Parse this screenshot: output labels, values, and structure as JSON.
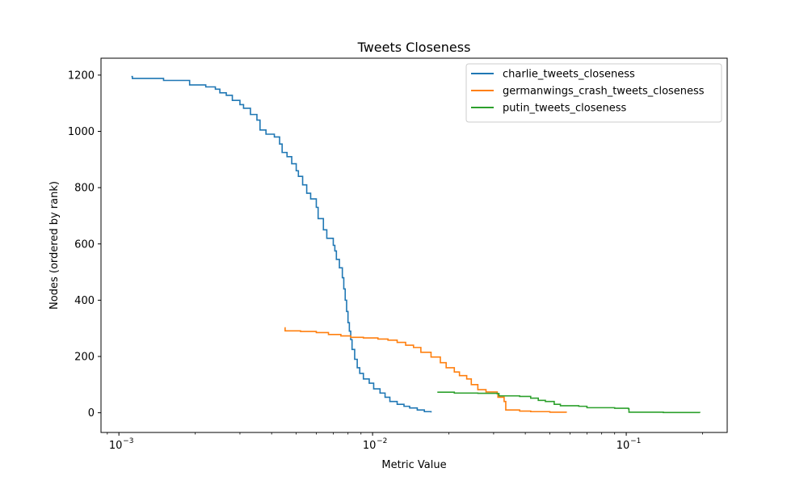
{
  "chart_data": {
    "type": "line",
    "title": "Tweets Closeness",
    "xlabel": "Metric Value",
    "ylabel": "Nodes (ordered by rank)",
    "xscale": "log",
    "xlim": [
      0.00085,
      0.25
    ],
    "ylim": [
      -70,
      1260
    ],
    "grid": false,
    "legend_position": "top-right",
    "x_tick_labels": [
      "10",
      "10",
      "10"
    ],
    "x_tick_exponents": [
      "−3",
      "−2",
      "−1"
    ],
    "x_ticks": [
      0.001,
      0.01,
      0.1
    ],
    "y_ticks": [
      0,
      200,
      400,
      600,
      800,
      1000,
      1200
    ],
    "y_tick_labels": [
      "0",
      "200",
      "400",
      "600",
      "800",
      "1000",
      "1200"
    ],
    "series": [
      {
        "name": "charlie_tweets_closeness",
        "color": "#1f77b4",
        "points": [
          [
            0.00112,
            1195
          ],
          [
            0.00113,
            1188
          ],
          [
            0.0015,
            1187
          ],
          [
            0.0015,
            1181
          ],
          [
            0.0019,
            1176
          ],
          [
            0.0019,
            1165
          ],
          [
            0.0022,
            1158
          ],
          [
            0.0024,
            1150
          ],
          [
            0.0025,
            1137
          ],
          [
            0.00265,
            1128
          ],
          [
            0.0028,
            1110
          ],
          [
            0.003,
            1095
          ],
          [
            0.0031,
            1082
          ],
          [
            0.0033,
            1060
          ],
          [
            0.0035,
            1040
          ],
          [
            0.0036,
            1005
          ],
          [
            0.0038,
            990
          ],
          [
            0.0041,
            980
          ],
          [
            0.0043,
            955
          ],
          [
            0.0044,
            925
          ],
          [
            0.0046,
            910
          ],
          [
            0.0048,
            885
          ],
          [
            0.005,
            860
          ],
          [
            0.0051,
            840
          ],
          [
            0.0053,
            810
          ],
          [
            0.0055,
            780
          ],
          [
            0.0057,
            760
          ],
          [
            0.006,
            730
          ],
          [
            0.0061,
            690
          ],
          [
            0.0064,
            650
          ],
          [
            0.0066,
            620
          ],
          [
            0.007,
            595
          ],
          [
            0.0071,
            575
          ],
          [
            0.0072,
            545
          ],
          [
            0.0074,
            515
          ],
          [
            0.0076,
            480
          ],
          [
            0.0077,
            440
          ],
          [
            0.0078,
            400
          ],
          [
            0.0079,
            360
          ],
          [
            0.008,
            320
          ],
          [
            0.0081,
            290
          ],
          [
            0.0082,
            260
          ],
          [
            0.0083,
            225
          ],
          [
            0.0085,
            190
          ],
          [
            0.0087,
            160
          ],
          [
            0.0089,
            140
          ],
          [
            0.0092,
            120
          ],
          [
            0.0097,
            105
          ],
          [
            0.0101,
            85
          ],
          [
            0.0107,
            70
          ],
          [
            0.0112,
            55
          ],
          [
            0.0117,
            40
          ],
          [
            0.0125,
            30
          ],
          [
            0.0133,
            23
          ],
          [
            0.014,
            17
          ],
          [
            0.015,
            10
          ],
          [
            0.016,
            4
          ],
          [
            0.017,
            1
          ]
        ]
      },
      {
        "name": "germanwings_crash_tweets_closeness",
        "color": "#ff7f0e",
        "points": [
          [
            0.0045,
            302
          ],
          [
            0.00452,
            291
          ],
          [
            0.0052,
            289
          ],
          [
            0.006,
            285
          ],
          [
            0.0067,
            278
          ],
          [
            0.0075,
            273
          ],
          [
            0.0082,
            268
          ],
          [
            0.0092,
            266
          ],
          [
            0.0105,
            262
          ],
          [
            0.0115,
            258
          ],
          [
            0.0125,
            250
          ],
          [
            0.0135,
            240
          ],
          [
            0.0145,
            232
          ],
          [
            0.0155,
            215
          ],
          [
            0.017,
            198
          ],
          [
            0.0185,
            178
          ],
          [
            0.0195,
            160
          ],
          [
            0.021,
            145
          ],
          [
            0.022,
            132
          ],
          [
            0.0235,
            120
          ],
          [
            0.0245,
            100
          ],
          [
            0.026,
            82
          ],
          [
            0.028,
            74
          ],
          [
            0.031,
            68
          ],
          [
            0.0312,
            55
          ],
          [
            0.033,
            40
          ],
          [
            0.0335,
            10
          ],
          [
            0.038,
            6
          ],
          [
            0.042,
            4
          ],
          [
            0.05,
            2
          ],
          [
            0.058,
            0
          ]
        ]
      },
      {
        "name": "putin_tweets_closeness",
        "color": "#2ca02c",
        "points": [
          [
            0.018,
            73
          ],
          [
            0.021,
            70
          ],
          [
            0.026,
            69
          ],
          [
            0.031,
            68
          ],
          [
            0.0315,
            60
          ],
          [
            0.038,
            58
          ],
          [
            0.042,
            52
          ],
          [
            0.045,
            44
          ],
          [
            0.048,
            40
          ],
          [
            0.052,
            30
          ],
          [
            0.055,
            25
          ],
          [
            0.065,
            23
          ],
          [
            0.07,
            18
          ],
          [
            0.09,
            16
          ],
          [
            0.102,
            14
          ],
          [
            0.1025,
            2
          ],
          [
            0.14,
            1
          ],
          [
            0.195,
            0
          ]
        ]
      }
    ]
  }
}
